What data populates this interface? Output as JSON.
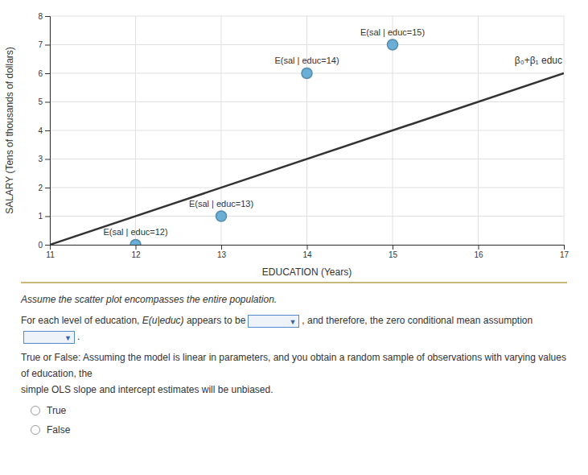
{
  "chart_data": {
    "type": "scatter",
    "xlabel": "EDUCATION (Years)",
    "ylabel": "SALARY (Tens of thousands of dollars)",
    "series": [
      {
        "type": "scatter",
        "marker": "circle",
        "color": "#6baed6",
        "x": [
          12,
          13,
          14,
          15
        ],
        "values": [
          0.0,
          1.0,
          6.0,
          7.0
        ],
        "labels": [
          "E(sal | educ=12)",
          "E(sal | educ=13)",
          "E(sal | educ=14)",
          "E(sal | educ=15)"
        ]
      },
      {
        "type": "line",
        "line_style": "solid",
        "color": "#333333",
        "x": [
          11.0,
          17.0
        ],
        "values": [
          0.0,
          6.0
        ],
        "label": "β₀+β₁ educ"
      }
    ],
    "xlim": [
      11,
      17
    ],
    "ylim": [
      0,
      8
    ],
    "xticks": [
      11,
      12,
      13,
      14,
      15,
      16,
      17
    ],
    "yticks": [
      0,
      1,
      2,
      3,
      4,
      5,
      6,
      7,
      8
    ],
    "grid": true,
    "question": {
      "note": "Assume the scatter plot encompasses the entire population.",
      "sentence": [
        "For each level of education, ",
        "E(u|educ)",
        " appears to be",
        ", and therefore, the zero conditional mean assumption",
        "."
      ],
      "dropdown": "▼",
      "lines": [
        "True or False: Assuming the model is linear in parameters, and you obtain a random sample of observations with varying values of education, the",
        "simple OLS slope and intercept estimates will be unbiased."
      ],
      "options": [
        "True",
        "False"
      ]
    }
  }
}
